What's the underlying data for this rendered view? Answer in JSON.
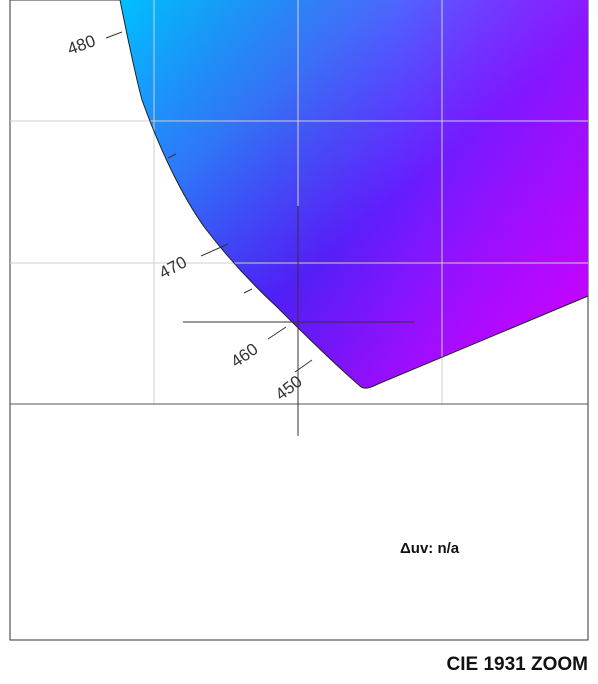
{
  "panel": {
    "title": "CIE 1931 ZOOM",
    "delta_uv": "Δuv: n/a"
  },
  "locus": {
    "wavelength_labels": [
      "480",
      "470",
      "460",
      "450"
    ]
  },
  "colors": {
    "cyan": "#00b4ff",
    "blue": "#3a22ff",
    "violet": "#8a10ff",
    "magenta": "#d400ff",
    "grid": "#cfcfcf",
    "frame": "#333333"
  }
}
